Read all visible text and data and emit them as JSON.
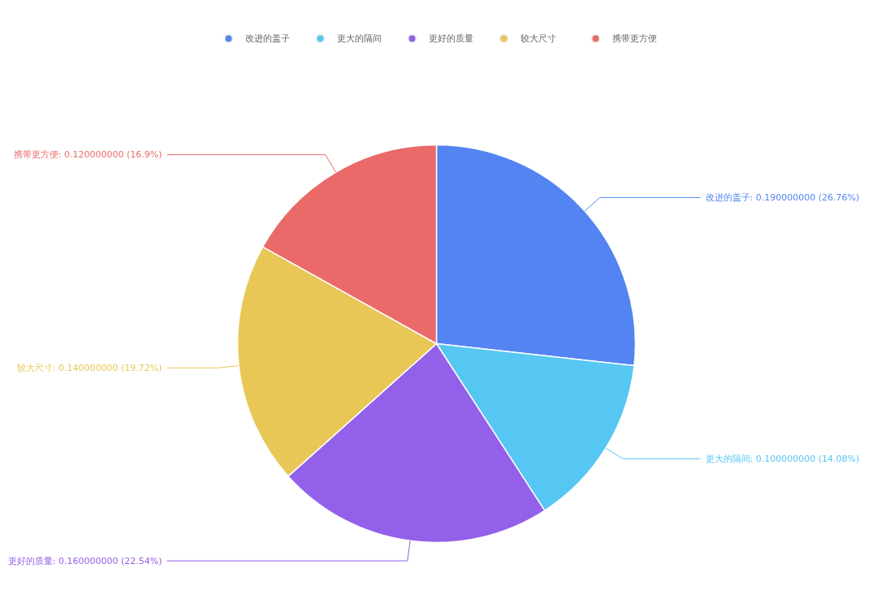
{
  "chart_data": {
    "type": "pie",
    "categories": [
      "改进的盖子",
      "更大的隔间",
      "更好的质量",
      "较大尺寸",
      "携带更方便"
    ],
    "values": [
      0.19,
      0.1,
      0.16,
      0.14,
      0.12
    ],
    "colors": [
      "#5384f1",
      "#56c6f2",
      "#9260e9",
      "#e8c757",
      "#e96a68"
    ],
    "value_labels": [
      "改进的盖子: 0.190000000 (26.76%)",
      "更大的隔间: 0.100000000 (14.08%)",
      "更好的质量: 0.160000000 (22.54%)",
      "较大尺寸: 0.140000000 (19.72%)",
      "携带更方便: 0.120000000 (16.9%)"
    ],
    "legend": "top"
  }
}
